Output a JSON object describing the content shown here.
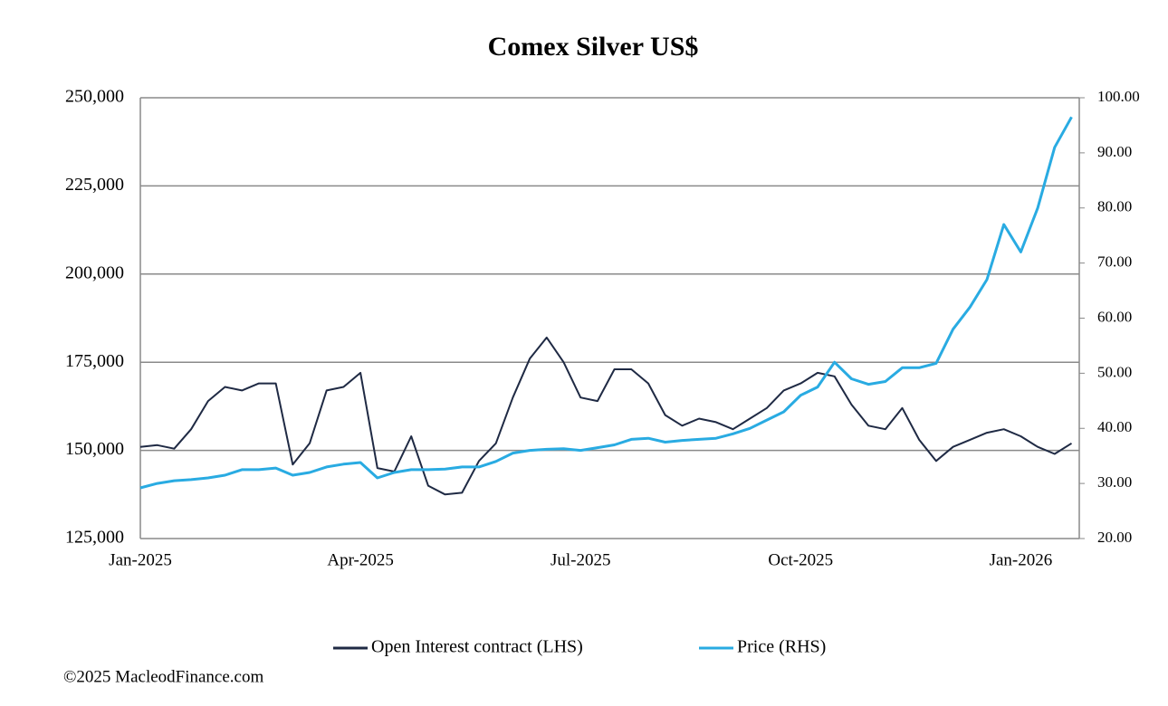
{
  "chart_data": {
    "type": "line",
    "title": "Comex Silver US$",
    "categories": [
      "Jan-2025",
      null,
      null,
      null,
      null,
      null,
      null,
      null,
      null,
      null,
      null,
      null,
      null,
      "Apr-2025",
      null,
      null,
      null,
      null,
      null,
      null,
      null,
      null,
      null,
      null,
      null,
      null,
      "Jul-2025",
      null,
      null,
      null,
      null,
      null,
      null,
      null,
      null,
      null,
      null,
      null,
      null,
      "Oct-2025",
      null,
      null,
      null,
      null,
      null,
      null,
      null,
      null,
      null,
      null,
      null,
      null,
      "Jan-2026",
      null,
      null,
      null
    ],
    "series": [
      {
        "name": "Open Interest contract (LHS)",
        "color": "#1f2a44",
        "axis": "y",
        "values": [
          151000,
          151500,
          150500,
          156000,
          164000,
          168000,
          167000,
          169000,
          169000,
          146000,
          152000,
          167000,
          168000,
          172000,
          145000,
          144000,
          154000,
          140000,
          137500,
          138000,
          147000,
          152000,
          165000,
          176000,
          182000,
          175000,
          165000,
          164000,
          173000,
          173000,
          169000,
          160000,
          157000,
          159000,
          158000,
          156000,
          159000,
          162000,
          167000,
          169000,
          172000,
          171000,
          163000,
          157000,
          156000,
          162000,
          153000,
          147000,
          151000,
          153000,
          155000,
          156000,
          154000,
          151000,
          149000,
          152000
        ]
      },
      {
        "name": "Price (RHS)",
        "color": "#29abe2",
        "axis": "y2",
        "values": [
          29.2,
          30,
          30.5,
          30.7,
          31,
          31.5,
          32.5,
          32.5,
          32.8,
          31.5,
          32,
          33,
          33.5,
          33.8,
          31,
          32,
          32.5,
          32.5,
          32.6,
          33,
          33,
          34,
          35.5,
          36,
          36.2,
          36.3,
          36,
          36.5,
          37,
          38,
          38.2,
          37.5,
          37.8,
          38,
          38.2,
          39,
          40,
          41.5,
          43,
          46,
          47.5,
          52,
          49,
          48,
          48.5,
          51,
          51,
          51.8,
          58,
          62,
          67,
          77,
          72,
          80,
          91,
          96.5
        ]
      }
    ],
    "ylim": [
      125000,
      250000
    ],
    "yticks": [
      {
        "value": 125000,
        "label": "125,000"
      },
      {
        "value": 150000,
        "label": "150,000"
      },
      {
        "value": 175000,
        "label": "175,000"
      },
      {
        "value": 200000,
        "label": "200,000"
      },
      {
        "value": 225000,
        "label": "225,000"
      },
      {
        "value": 250000,
        "label": "250,000"
      }
    ],
    "y2lim": [
      20,
      100
    ],
    "y2ticks": [
      {
        "value": 20,
        "label": "20.00"
      },
      {
        "value": 30,
        "label": "30.00"
      },
      {
        "value": 40,
        "label": "40.00"
      },
      {
        "value": 50,
        "label": "50.00"
      },
      {
        "value": 60,
        "label": "60.00"
      },
      {
        "value": 70,
        "label": "70.00"
      },
      {
        "value": 80,
        "label": "80.00"
      },
      {
        "value": 90,
        "label": "90.00"
      },
      {
        "value": 100,
        "label": "100.00"
      }
    ],
    "grid": true,
    "legend": "bottom",
    "source": "©2025 MacleodFinance.com"
  }
}
